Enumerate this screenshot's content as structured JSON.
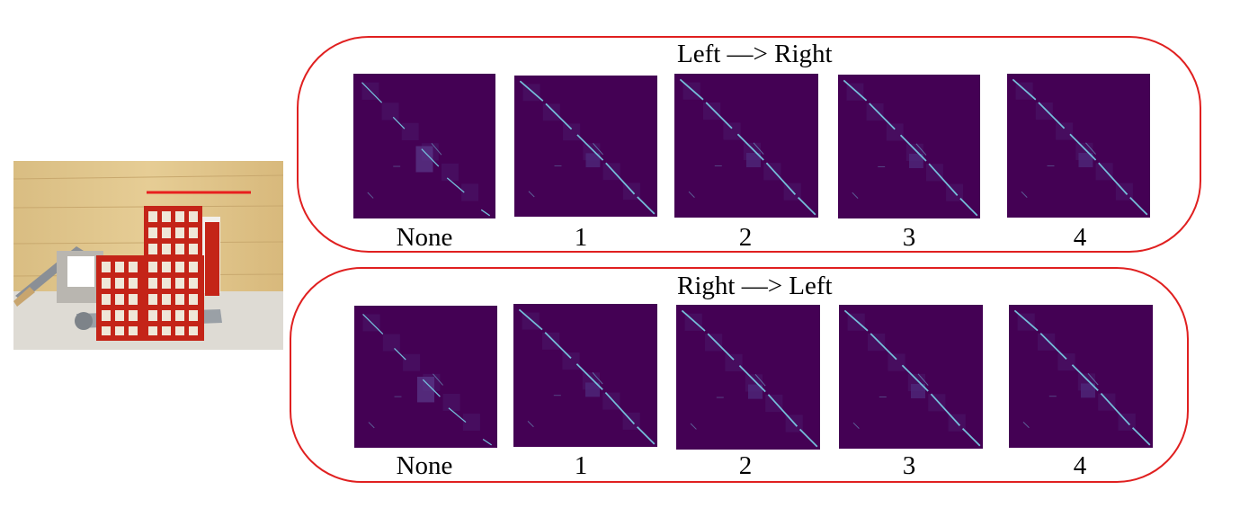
{
  "figure": {
    "photo": {
      "description_icon": "scene-photo"
    },
    "colors": {
      "frame": "#e02020",
      "heatmap_bg": "#440154",
      "heatmap_hi": "#7ad2e8",
      "scanline": "#e81e1e",
      "basket": "#c42418",
      "wood": "#e2c88e"
    },
    "groups": [
      {
        "title": "Left —> Right",
        "labels": [
          "None",
          "1",
          "2",
          "3",
          "4"
        ]
      },
      {
        "title": "Right —> Left",
        "labels": [
          "None",
          "1",
          "2",
          "3",
          "4"
        ]
      }
    ]
  }
}
